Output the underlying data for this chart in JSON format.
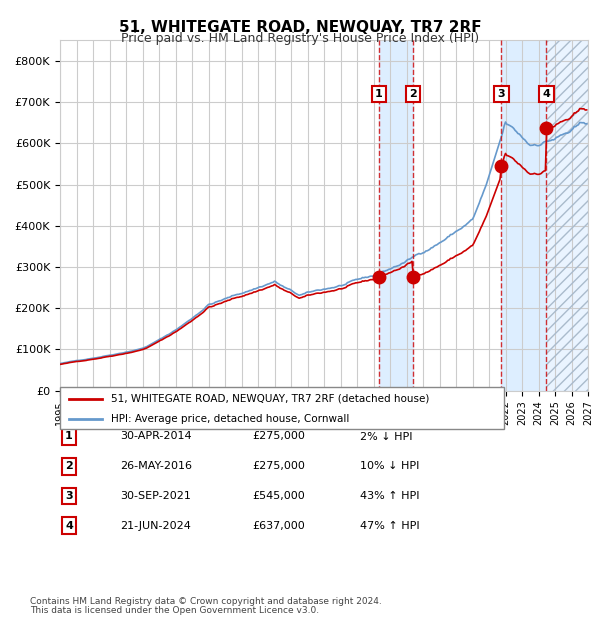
{
  "title": "51, WHITEGATE ROAD, NEWQUAY, TR7 2RF",
  "subtitle": "Price paid vs. HM Land Registry's House Price Index (HPI)",
  "legend_line1": "51, WHITEGATE ROAD, NEWQUAY, TR7 2RF (detached house)",
  "legend_line2": "HPI: Average price, detached house, Cornwall",
  "footer1": "Contains HM Land Registry data © Crown copyright and database right 2024.",
  "footer2": "This data is licensed under the Open Government Licence v3.0.",
  "transactions": [
    {
      "num": 1,
      "date": "30-APR-2014",
      "price": 275000,
      "hpi_rel": "2% ↓ HPI",
      "year": 2014.33
    },
    {
      "num": 2,
      "date": "26-MAY-2016",
      "price": 275000,
      "hpi_rel": "10% ↓ HPI",
      "year": 2016.41
    },
    {
      "num": 3,
      "date": "30-SEP-2021",
      "price": 545000,
      "hpi_rel": "43% ↑ HPI",
      "year": 2021.75
    },
    {
      "num": 4,
      "date": "21-JUN-2024",
      "price": 637000,
      "hpi_rel": "47% ↑ HPI",
      "year": 2024.47
    }
  ],
  "ylim": [
    0,
    850000
  ],
  "xlim_start": 1995,
  "xlim_end": 2027,
  "hpi_color": "#6699cc",
  "price_color": "#cc0000",
  "grid_color": "#cccccc",
  "bg_color": "#ffffff",
  "shade_color": "#ddeeff",
  "hatch_color": "#aabbcc"
}
